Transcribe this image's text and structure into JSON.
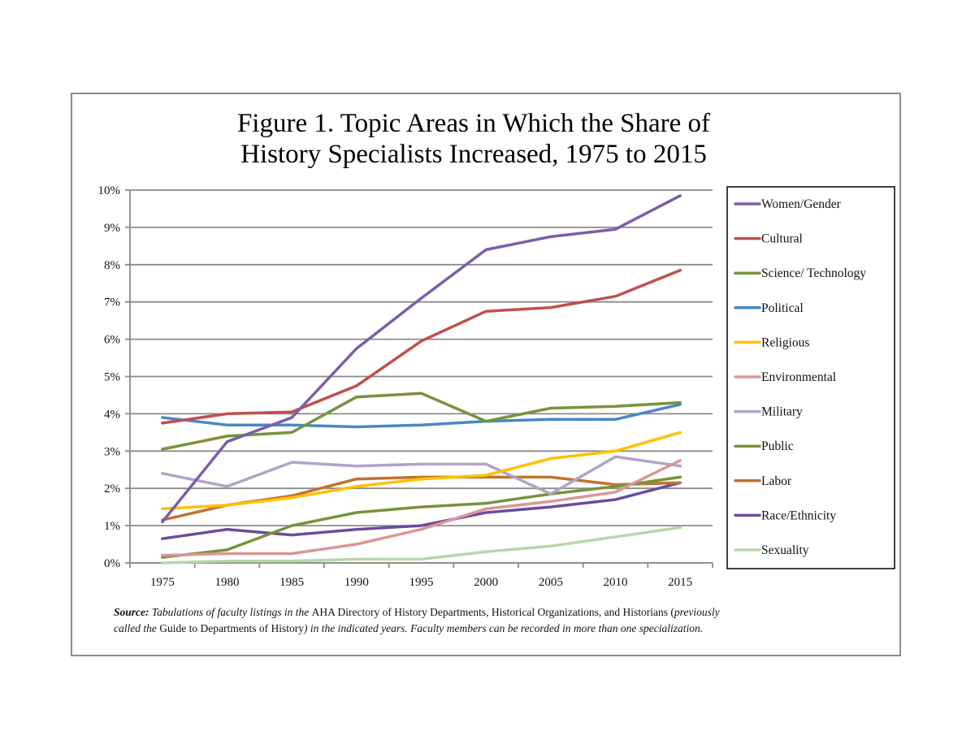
{
  "chart_data": {
    "type": "line",
    "title": "Figure 1. Topic Areas in Which the Share of History Specialists Increased, 1975 to 2015",
    "title_lines": [
      "Figure 1. Topic Areas in Which the Share of",
      "History Specialists Increased, 1975 to 2015"
    ],
    "xlabel": "",
    "ylabel": "",
    "x": [
      1975,
      1980,
      1985,
      1990,
      1995,
      2000,
      2005,
      2010,
      2015
    ],
    "x_tick_labels": [
      "1975",
      "1980",
      "1985",
      "1990",
      "1995",
      "2000",
      "2005",
      "2010",
      "2015"
    ],
    "ylim": [
      0,
      10
    ],
    "y_ticks": [
      0,
      1,
      2,
      3,
      4,
      5,
      6,
      7,
      8,
      9,
      10
    ],
    "y_tick_labels": [
      "0%",
      "1%",
      "2%",
      "3%",
      "4%",
      "5%",
      "6%",
      "7%",
      "8%",
      "9%",
      "10%"
    ],
    "y_unit": "percent",
    "grid": true,
    "legend_position": "right",
    "series": [
      {
        "name": "Women/Gender",
        "color": "#7b5ea7",
        "values": [
          1.1,
          3.25,
          3.9,
          5.75,
          7.1,
          8.4,
          8.75,
          8.95,
          9.85
        ]
      },
      {
        "name": "Cultural",
        "color": "#c0504d",
        "values": [
          3.75,
          4.0,
          4.05,
          4.75,
          5.95,
          6.75,
          6.85,
          7.15,
          7.85
        ]
      },
      {
        "name": "Science/ Technology",
        "color": "#77933c",
        "values": [
          3.05,
          3.4,
          3.5,
          4.45,
          4.55,
          3.8,
          4.15,
          4.2,
          4.3
        ]
      },
      {
        "name": "Political",
        "color": "#4a86c8",
        "values": [
          3.9,
          3.7,
          3.7,
          3.65,
          3.7,
          3.8,
          3.85,
          3.85,
          4.25
        ]
      },
      {
        "name": "Religious",
        "color": "#ffc000",
        "values": [
          1.45,
          1.55,
          1.75,
          2.05,
          2.25,
          2.35,
          2.8,
          3.0,
          3.5
        ]
      },
      {
        "name": "Environmental",
        "color": "#d99694",
        "values": [
          0.2,
          0.25,
          0.25,
          0.5,
          0.9,
          1.45,
          1.65,
          1.9,
          2.75
        ]
      },
      {
        "name": "Military",
        "color": "#b3a2c7",
        "values": [
          2.4,
          2.05,
          2.7,
          2.6,
          2.65,
          2.65,
          1.85,
          2.85,
          2.6
        ]
      },
      {
        "name": "Public",
        "color": "#77933c",
        "values": [
          0.15,
          0.35,
          1.0,
          1.35,
          1.5,
          1.6,
          1.85,
          2.05,
          2.3
        ]
      },
      {
        "name": "Labor",
        "color": "#c0722f",
        "values": [
          1.15,
          1.55,
          1.8,
          2.25,
          2.3,
          2.3,
          2.3,
          2.1,
          2.15
        ]
      },
      {
        "name": "Race/Ethnicity",
        "color": "#6a4c9c",
        "values": [
          0.65,
          0.9,
          0.75,
          0.9,
          1.0,
          1.35,
          1.5,
          1.7,
          2.15
        ]
      },
      {
        "name": "Sexuality",
        "color": "#b6d7a8",
        "values": [
          0.0,
          0.05,
          0.05,
          0.1,
          0.1,
          0.3,
          0.45,
          0.7,
          0.95
        ]
      }
    ]
  },
  "source_note": {
    "label": "Source:",
    "line1_italic_a": " Tabulations of faculty listings in the ",
    "line1_plain": "AHA Directory of History Departments, Historical Organizations, and Historians (",
    "line1_italic_b": "previously",
    "line2_italic_a": "called the ",
    "line2_plain": "Guide to  Departments of History",
    "line2_italic_b": ") in the indicated years.  Faculty members can be recorded in more than one specialization."
  }
}
